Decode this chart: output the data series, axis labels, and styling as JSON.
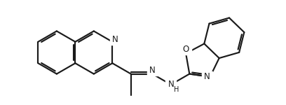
{
  "bg": "#ffffff",
  "lc": "#1a1a1a",
  "lw": 1.55,
  "dbo": 0.06,
  "fs": 8.5,
  "figsize": [
    4.08,
    1.5
  ],
  "dpi": 100,
  "xlim": [
    0.0,
    9.5
  ],
  "ylim": [
    0.5,
    4.0
  ]
}
